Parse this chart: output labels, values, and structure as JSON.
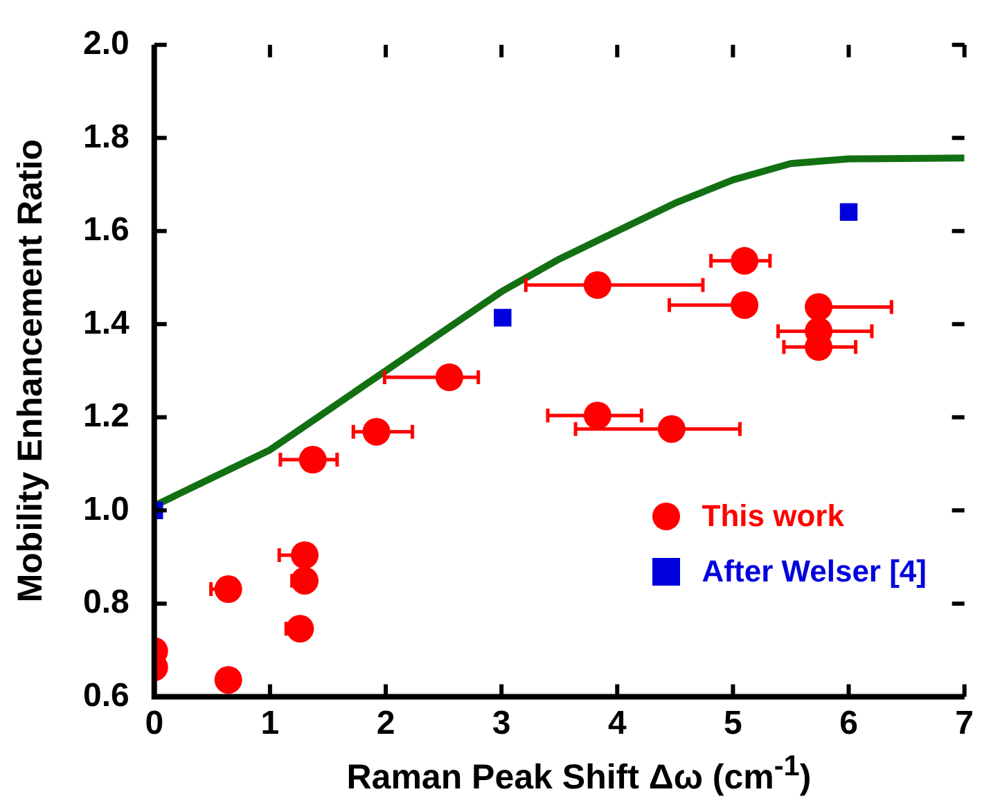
{
  "chart_data": {
    "type": "scatter",
    "xlabel": "Raman Peak Shift Δω (cm$^{-1}$)",
    "ylabel": "Mobility Enhancement Ratio",
    "xlim": [
      0,
      7
    ],
    "xticks": [
      0,
      1,
      2,
      3,
      4,
      5,
      6,
      7
    ],
    "ylim": [
      0.6,
      2.0
    ],
    "yticks": [
      0.6,
      0.8,
      {
        "value": 1,
        "label": "1.0"
      },
      1.2,
      1.4,
      1.6,
      1.8,
      {
        "value": 2,
        "label": "2.0"
      }
    ],
    "grid": false,
    "legend": "bottom right",
    "series": [
      {
        "name": "This work",
        "type": "scatter",
        "marker": "circle",
        "color": "#ff0000",
        "x": [
          5.1,
          3.83,
          5.1,
          5.74,
          5.74,
          5.74,
          2.55,
          1.92,
          1.37,
          3.83,
          4.47,
          1.3,
          1.3,
          0.64,
          1.26,
          0,
          0,
          0.64
        ],
        "values": [
          1.536,
          1.484,
          1.441,
          1.437,
          1.385,
          1.351,
          1.286,
          1.169,
          1.109,
          1.204,
          1.175,
          0.904,
          0.849,
          0.831,
          0.746,
          0.698,
          0.663,
          0.636
        ],
        "xerrors": [
          [
            4.81,
            5.32
          ],
          [
            3.21,
            4.74
          ],
          [
            4.45,
            5.1
          ],
          [
            5.74,
            6.37
          ],
          [
            5.39,
            6.2
          ],
          [
            5.44,
            6.06
          ],
          [
            1.99,
            2.8
          ],
          [
            1.72,
            2.23
          ],
          [
            1.09,
            1.58
          ],
          [
            3.4,
            4.21
          ],
          [
            3.64,
            5.06
          ],
          [
            1.08,
            1.3
          ],
          [
            1.19,
            1.3
          ],
          [
            0.49,
            0.64
          ],
          [
            1.14,
            1.26
          ],
          null,
          null,
          null
        ]
      },
      {
        "name": "After Welser [4]",
        "type": "scatter",
        "marker": "square",
        "color": "#0000dd",
        "x": [
          0,
          3.01,
          6.0
        ],
        "values": [
          1.0,
          1.414,
          1.641
        ]
      },
      {
        "type": "line",
        "marker": "none",
        "line_style": "solid",
        "color": "#127012",
        "x": [
          0,
          0.5,
          1,
          1.5,
          2,
          2.5,
          3,
          3.5,
          4,
          4.5,
          5,
          5.5,
          6,
          7
        ],
        "values": [
          1.01,
          1.07,
          1.13,
          1.215,
          1.3,
          1.385,
          1.47,
          1.54,
          1.6,
          1.66,
          1.71,
          1.745,
          1.755,
          1.757
        ]
      }
    ]
  }
}
